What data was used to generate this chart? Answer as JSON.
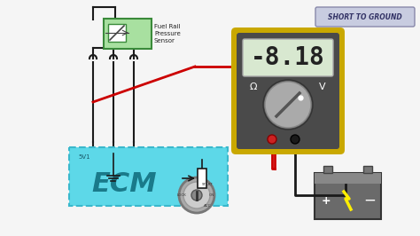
{
  "bg_color": "#f5f5f5",
  "label_short_to_ground": "SHORT TO GROUND",
  "label_ecm": "ECM",
  "label_5v1": "5V1",
  "label_fuel_rail": "Fuel Rail\nPressure\nSensor",
  "label_multimeter_display": "-8.18",
  "multimeter_body_color": "#4a4a4a",
  "multimeter_border_color": "#c9a800",
  "ecm_fill_color": "#5dd8e8",
  "ecm_border_color": "#3ab8cc",
  "sensor_fill_color": "#a8e0a0",
  "sensor_border_color": "#3a8a3a",
  "red_wire_color": "#cc0000",
  "black_wire_color": "#1a1a1a",
  "battery_color": "#666666",
  "display_bg": "#d8e8d0",
  "display_text_color": "#222222",
  "short_to_ground_bg": "#c8cce0",
  "short_to_ground_border": "#8888aa",
  "short_to_ground_text": "#333366",
  "wire_color": "#1a1a1a",
  "dial_color": "#888888",
  "dial_line_color": "#555555"
}
